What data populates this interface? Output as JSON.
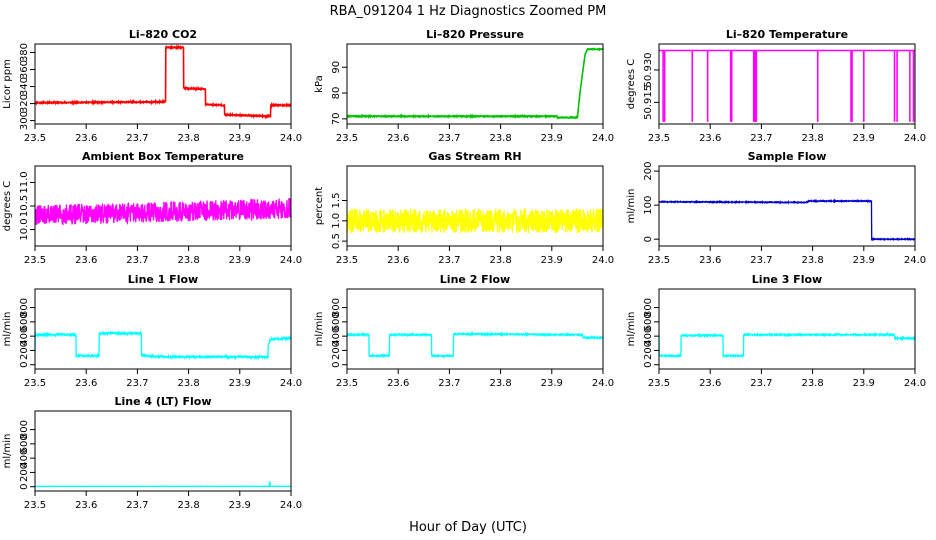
{
  "figure": {
    "title": "RBA_091204  1 Hz Diagnostics Zoomed PM",
    "xlabel": "Hour of Day (UTC)"
  },
  "chart_data": [
    {
      "type": "line",
      "title": "Li–820 CO2",
      "ylabel": "Licor ppm",
      "color": "#ff0000",
      "xlim": [
        23.5,
        24.0
      ],
      "ylim": [
        296,
        390
      ],
      "xticks": [
        "23.5",
        "23.6",
        "23.7",
        "23.8",
        "23.9",
        "24.0"
      ],
      "yticks": [
        300,
        320,
        340,
        360,
        380
      ],
      "x": [
        23.5,
        23.755,
        23.755,
        23.79,
        23.79,
        23.833,
        23.833,
        23.87,
        23.87,
        23.96,
        23.96,
        24.0
      ],
      "y": [
        321,
        322,
        386,
        386,
        338,
        337,
        319,
        318,
        307,
        305,
        318,
        318
      ],
      "noise": 0.6,
      "seed": 11
    },
    {
      "type": "line",
      "title": "Li–820 Pressure",
      "ylabel": "kPa",
      "color": "#00c000",
      "xlim": [
        23.5,
        24.0
      ],
      "ylim": [
        68,
        99
      ],
      "xticks": [
        "23.5",
        "23.6",
        "23.7",
        "23.8",
        "23.9",
        "24.0"
      ],
      "yticks": [
        70,
        80,
        90
      ],
      "x": [
        23.5,
        23.91,
        23.91,
        23.95,
        23.955,
        23.965,
        23.97,
        23.98,
        24.0
      ],
      "y": [
        71,
        71,
        70.5,
        70.5,
        80,
        95,
        97,
        97,
        97
      ],
      "noise": 0.15,
      "seed": 23
    },
    {
      "type": "line",
      "title": "Li–820 Temperature",
      "ylabel": "degrees C",
      "color": "#ff00ff",
      "xlim": [
        23.5,
        24.0
      ],
      "ylim": [
        50.905,
        50.942
      ],
      "xticks": [
        "23.5",
        "23.6",
        "23.7",
        "23.8",
        "23.9",
        "24.0"
      ],
      "yticks": [
        "50.915",
        "50.930"
      ],
      "x": [
        23.5,
        24.0
      ],
      "y": [
        50.939,
        50.939
      ],
      "spikes": [
        23.508,
        23.511,
        23.565,
        23.595,
        23.64,
        23.642,
        23.685,
        23.688,
        23.69,
        23.69,
        23.81,
        23.875,
        23.877,
        23.9,
        23.96,
        23.965,
        23.99,
        23.997
      ],
      "spike_low": 50.906,
      "noise": 0.0,
      "seed": 5
    },
    {
      "type": "line",
      "title": "Ambient Box Temperature",
      "ylabel": "degrees C",
      "color": "#ff00ff",
      "xlim": [
        23.5,
        24.0
      ],
      "ylim": [
        9.65,
        11.35
      ],
      "xticks": [
        "23.5",
        "23.6",
        "23.7",
        "23.8",
        "23.9",
        "24.0"
      ],
      "yticks": [
        "10.0",
        "10.5",
        "11.0"
      ],
      "x": [
        23.5,
        24.0
      ],
      "y": [
        10.3,
        10.45
      ],
      "noise": 0.22,
      "seed": 31
    },
    {
      "type": "line",
      "title": "Gas Stream RH",
      "ylabel": "percent",
      "color": "#ffff00",
      "xlim": [
        23.5,
        24.0
      ],
      "ylim": [
        0.38,
        2.35
      ],
      "xticks": [
        "23.5",
        "23.6",
        "23.7",
        "23.8",
        "23.9",
        "24.0"
      ],
      "yticks": [
        "0.5",
        "1.0",
        "1.5"
      ],
      "x": [
        23.5,
        24.0
      ],
      "y": [
        1.0,
        1.0
      ],
      "noise": 0.3,
      "seed": 47
    },
    {
      "type": "line",
      "title": "Sample Flow",
      "ylabel": "ml/min",
      "color": "#0000cc",
      "xlim": [
        23.5,
        24.0
      ],
      "ylim": [
        -20,
        215
      ],
      "xticks": [
        "23.5",
        "23.6",
        "23.7",
        "23.8",
        "23.9",
        "24.0"
      ],
      "yticks": [
        0,
        100,
        200
      ],
      "x": [
        23.5,
        23.79,
        23.79,
        23.915,
        23.915,
        24.0
      ],
      "y": [
        110,
        108,
        112,
        112,
        0,
        0
      ],
      "noise": 1.2,
      "seed": 53
    },
    {
      "type": "line",
      "title": "Line 1 Flow",
      "ylabel": "ml/min",
      "color": "#00ffff",
      "xlim": [
        23.5,
        24.0
      ],
      "ylim": [
        -60,
        1060
      ],
      "xticks": [
        "23.5",
        "23.6",
        "23.7",
        "23.8",
        "23.9",
        "24.0"
      ],
      "yticks": [
        0,
        200,
        400,
        600,
        800
      ],
      "x": [
        23.5,
        23.5,
        23.58,
        23.58,
        23.625,
        23.625,
        23.708,
        23.708,
        23.75,
        23.955,
        23.955,
        23.96,
        24.0
      ],
      "y": [
        150,
        420,
        420,
        125,
        125,
        440,
        440,
        130,
        110,
        110,
        250,
        360,
        370
      ],
      "noise": 12,
      "seed": 61
    },
    {
      "type": "line",
      "title": "Line 2 Flow",
      "ylabel": "ml/min",
      "color": "#00ffff",
      "xlim": [
        23.5,
        24.0
      ],
      "ylim": [
        -60,
        1060
      ],
      "xticks": [
        "23.5",
        "23.6",
        "23.7",
        "23.8",
        "23.9",
        "24.0"
      ],
      "yticks": [
        0,
        200,
        400,
        600,
        800
      ],
      "x": [
        23.5,
        23.543,
        23.543,
        23.583,
        23.583,
        23.665,
        23.665,
        23.708,
        23.708,
        23.96,
        23.96,
        24.0
      ],
      "y": [
        420,
        420,
        125,
        125,
        420,
        420,
        125,
        125,
        430,
        420,
        380,
        380
      ],
      "noise": 8,
      "seed": 67
    },
    {
      "type": "line",
      "title": "Line 3 Flow",
      "ylabel": "ml/min",
      "color": "#00ffff",
      "xlim": [
        23.5,
        24.0
      ],
      "ylim": [
        -60,
        1060
      ],
      "xticks": [
        "23.5",
        "23.6",
        "23.7",
        "23.8",
        "23.9",
        "24.0"
      ],
      "yticks": [
        0,
        200,
        400,
        600,
        800
      ],
      "x": [
        23.5,
        23.5,
        23.543,
        23.543,
        23.625,
        23.625,
        23.665,
        23.665,
        23.96,
        23.96,
        24.0
      ],
      "y": [
        420,
        125,
        125,
        410,
        410,
        125,
        125,
        420,
        420,
        370,
        370
      ],
      "noise": 8,
      "seed": 71
    },
    {
      "type": "line",
      "title": "Line 4 (LT) Flow",
      "ylabel": "ml/min",
      "color": "#00ffff",
      "xlim": [
        23.5,
        24.0
      ],
      "ylim": [
        -60,
        1060
      ],
      "xticks": [
        "23.5",
        "23.6",
        "23.7",
        "23.8",
        "23.9",
        "24.0"
      ],
      "yticks": [
        0,
        200,
        400,
        600,
        800
      ],
      "x": [
        23.5,
        23.958,
        23.958,
        23.96,
        23.962,
        24.0
      ],
      "y": [
        5,
        5,
        80,
        5,
        5,
        5
      ],
      "noise": 1.5,
      "seed": 79
    }
  ]
}
